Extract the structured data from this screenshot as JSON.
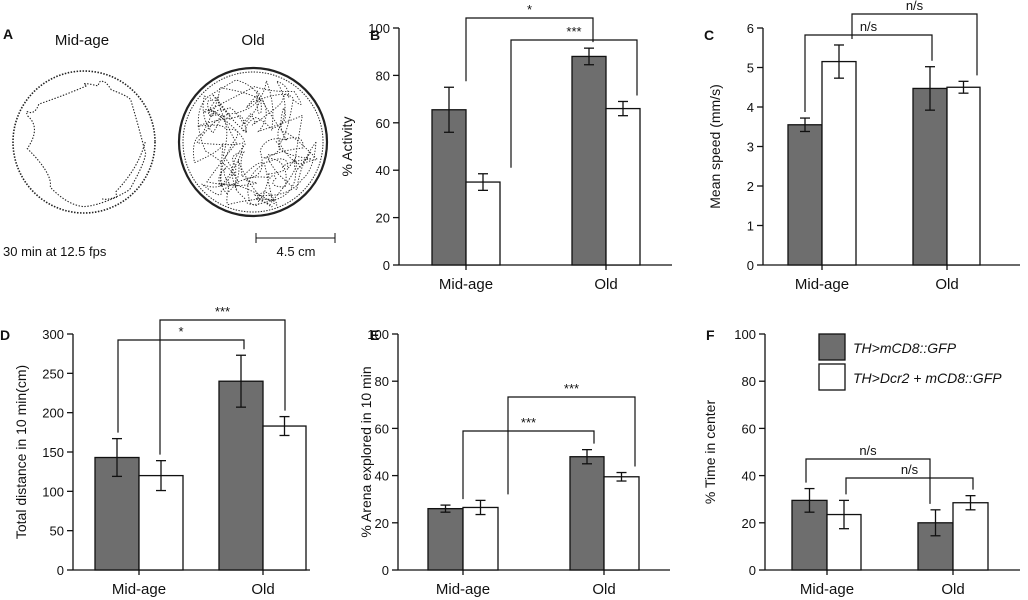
{
  "figure_colors": {
    "mcd8_fill": "#6e6e6e",
    "dcr2_fill": "#ffffff",
    "stroke": "#111111"
  },
  "legend": {
    "series": [
      {
        "name": "TH>mCD8::GFP",
        "color": "#6e6e6e"
      },
      {
        "name": "TH>Dcr2 + mCD8::GFP",
        "color": "#ffffff"
      }
    ]
  },
  "panel_a": {
    "letter": "A",
    "arena_labels": [
      "Mid-age",
      "Old"
    ],
    "caption": "30 min at 12.5 fps",
    "scale_label": "4.5 cm"
  },
  "chart_data": [
    {
      "letter": "B",
      "type": "bar",
      "categories": [
        "Mid-age",
        "Old"
      ],
      "series": [
        {
          "name": "TH>mCD8::GFP",
          "values": [
            65.5,
            88
          ],
          "errors": [
            9.5,
            3.5
          ]
        },
        {
          "name": "TH>Dcr2 + mCD8::GFP",
          "values": [
            35,
            66
          ],
          "errors": [
            3.5,
            3
          ]
        }
      ],
      "ylabel": "% Activity",
      "ylim": [
        0,
        100
      ],
      "yticks": [
        0,
        20,
        40,
        60,
        80,
        100
      ],
      "significance": [
        {
          "from": [
            0,
            0
          ],
          "to": [
            1,
            0
          ],
          "label": "*"
        },
        {
          "from": [
            0,
            1
          ],
          "to": [
            1,
            1
          ],
          "label": "***"
        }
      ]
    },
    {
      "letter": "C",
      "type": "bar",
      "categories": [
        "Mid-age",
        "Old"
      ],
      "series": [
        {
          "name": "TH>mCD8::GFP",
          "values": [
            3.55,
            4.47
          ],
          "errors": [
            0.17,
            0.55
          ]
        },
        {
          "name": "TH>Dcr2 + mCD8::GFP",
          "values": [
            5.15,
            4.5
          ],
          "errors": [
            0.42,
            0.15
          ]
        }
      ],
      "ylabel": "Mean  speed (mm/s)",
      "ylim": [
        0,
        6
      ],
      "yticks": [
        0,
        1,
        2,
        3,
        4,
        5,
        6
      ],
      "significance": [
        {
          "from": [
            0,
            0
          ],
          "to": [
            1,
            0
          ],
          "label": "n/s"
        },
        {
          "from": [
            0,
            1
          ],
          "to": [
            1,
            1
          ],
          "label": "n/s"
        }
      ]
    },
    {
      "letter": "D",
      "type": "bar",
      "categories": [
        "Mid-age",
        "Old"
      ],
      "series": [
        {
          "name": "TH>mCD8::GFP",
          "values": [
            143,
            240
          ],
          "errors": [
            24,
            33
          ]
        },
        {
          "name": "TH>Dcr2 + mCD8::GFP",
          "values": [
            120,
            183
          ],
          "errors": [
            19,
            12
          ]
        }
      ],
      "ylabel": "Total distance in 10 min(cm)",
      "ylim": [
        0,
        300
      ],
      "yticks": [
        0,
        50,
        100,
        150,
        200,
        250,
        300
      ],
      "significance": [
        {
          "from": [
            0,
            0
          ],
          "to": [
            1,
            0
          ],
          "label": "*"
        },
        {
          "from": [
            0,
            1
          ],
          "to": [
            1,
            1
          ],
          "label": "***"
        }
      ]
    },
    {
      "letter": "E",
      "type": "bar",
      "categories": [
        "Mid-age",
        "Old"
      ],
      "series": [
        {
          "name": "TH>mCD8::GFP",
          "values": [
            26,
            48
          ],
          "errors": [
            1.5,
            3
          ]
        },
        {
          "name": "TH>Dcr2 + mCD8::GFP",
          "values": [
            26.5,
            39.5
          ],
          "errors": [
            3,
            1.8
          ]
        }
      ],
      "ylabel": "% Arena explored in 10 min",
      "ylim": [
        0,
        100
      ],
      "yticks": [
        0,
        20,
        40,
        60,
        80,
        100
      ],
      "significance": [
        {
          "from": [
            0,
            0
          ],
          "to": [
            1,
            0
          ],
          "label": "***"
        },
        {
          "from": [
            0,
            1
          ],
          "to": [
            1,
            1
          ],
          "label": "***"
        }
      ]
    },
    {
      "letter": "F",
      "type": "bar",
      "categories": [
        "Mid-age",
        "Old"
      ],
      "series": [
        {
          "name": "TH>mCD8::GFP",
          "values": [
            29.5,
            20
          ],
          "errors": [
            5,
            5.5
          ]
        },
        {
          "name": "TH>Dcr2 + mCD8::GFP",
          "values": [
            23.5,
            28.5
          ],
          "errors": [
            6,
            3
          ]
        }
      ],
      "ylabel": "% Time in center",
      "ylim": [
        0,
        100
      ],
      "yticks": [
        0,
        20,
        40,
        60,
        80,
        100
      ],
      "significance": [
        {
          "from": [
            0,
            0
          ],
          "to": [
            1,
            0
          ],
          "label": "n/s"
        },
        {
          "from": [
            0,
            1
          ],
          "to": [
            1,
            1
          ],
          "label": "n/s"
        }
      ]
    }
  ]
}
